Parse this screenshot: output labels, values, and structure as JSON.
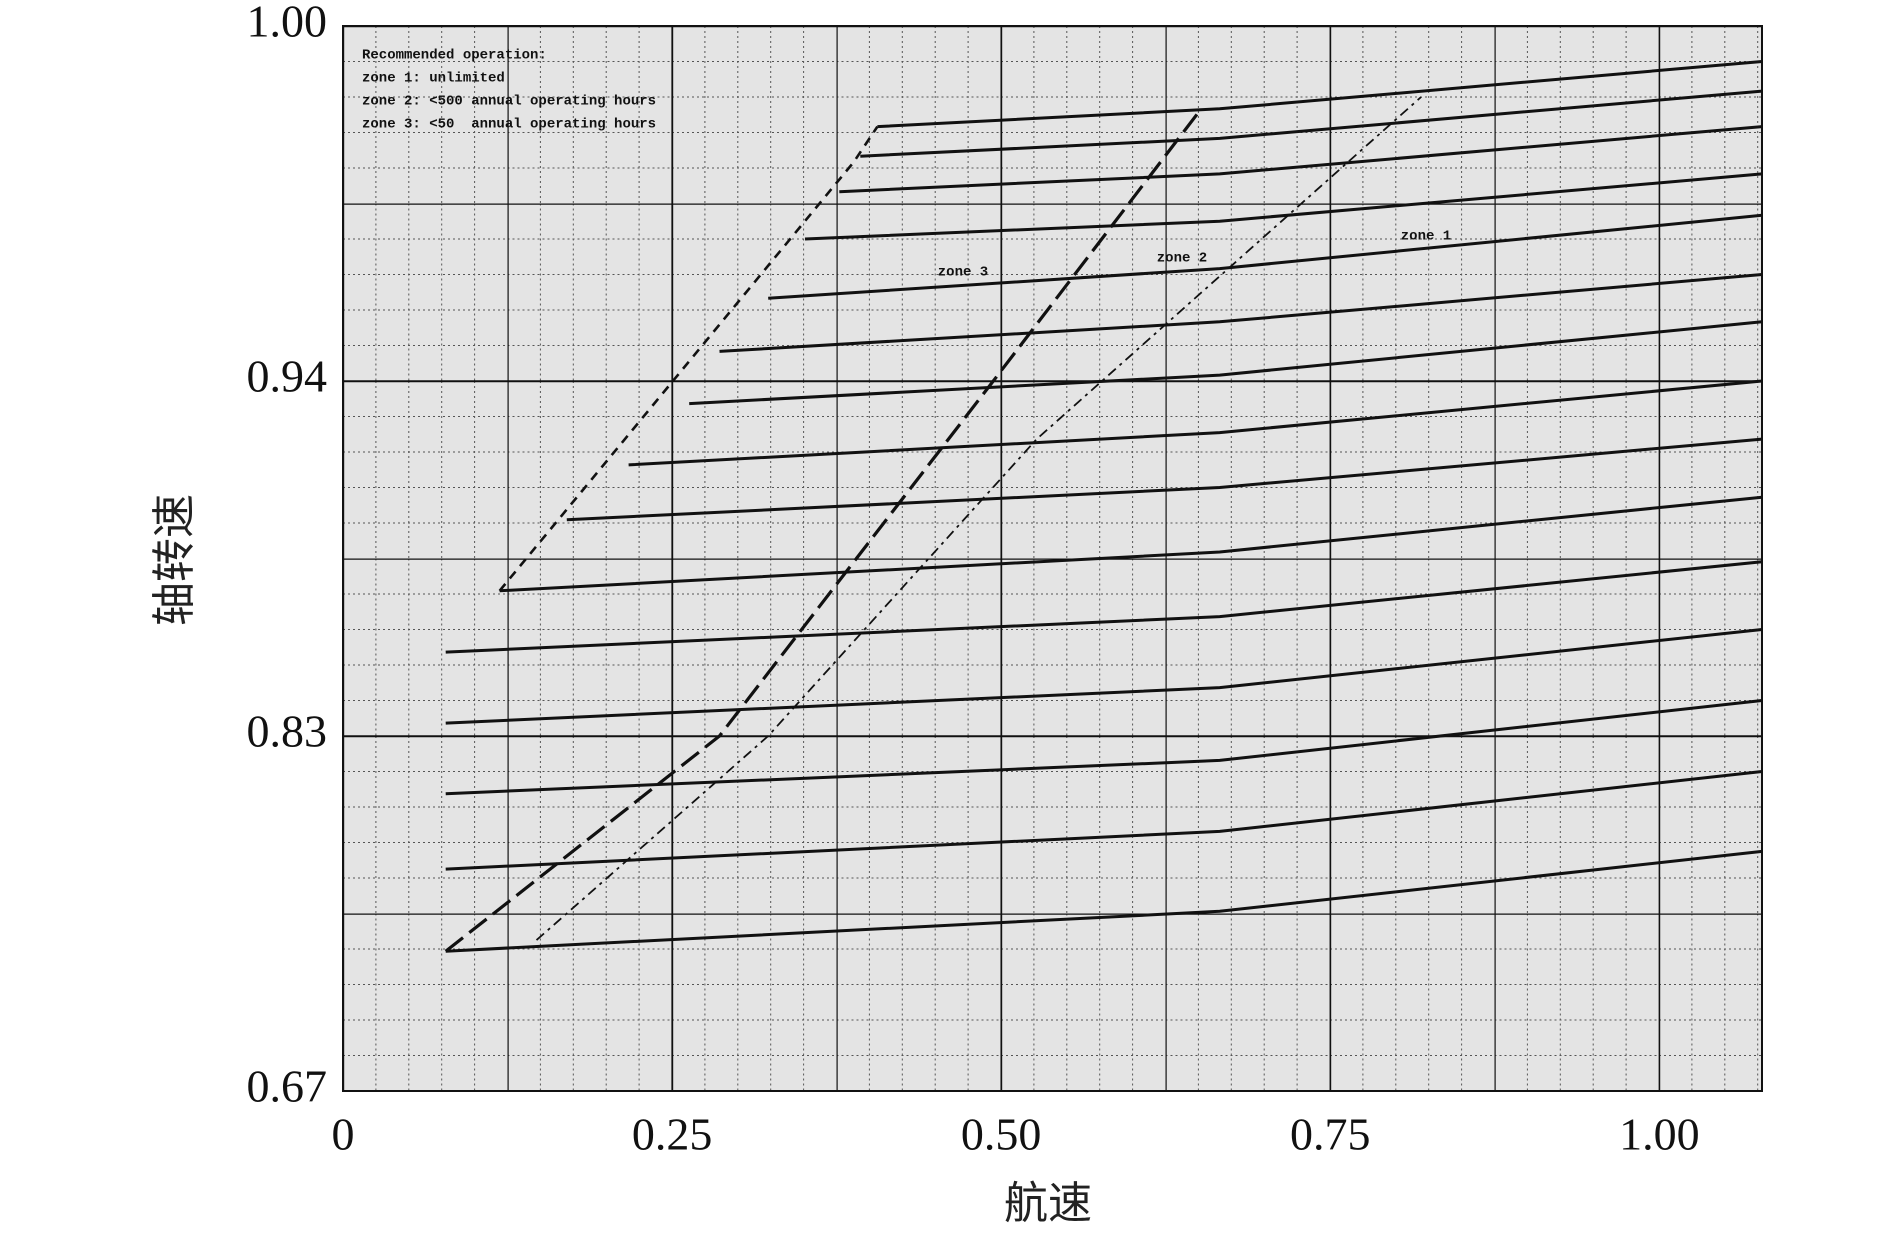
{
  "chart_data": {
    "type": "line",
    "xlabel": "航速",
    "ylabel": "轴转速",
    "xlim": [
      0,
      1.078
    ],
    "ylim": [
      0.67,
      1.0
    ],
    "yscale": "piecewise",
    "xticks": [
      0,
      0.25,
      {
        "value": 0.5,
        "label": "0.50"
      },
      0.75,
      {
        "value": 1,
        "label": "1.00"
      }
    ],
    "yticks": [
      0.67,
      0.83,
      0.94,
      {
        "value": 1,
        "label": "1.00"
      }
    ],
    "grid": true,
    "color": "#111111",
    "annotation_box": [
      "Recommended operation:",
      "zone 1: unlimited",
      "zone 2: <500 annual operating hours",
      "zone 3: <50  annual operating hours"
    ],
    "annotations": [
      "zone 3",
      "zone 2",
      "zone 1"
    ],
    "series": [
      {
        "style": "solid",
        "x": [
          0.406,
          0.666,
          1.078
        ],
        "values": [
          0.983,
          0.986,
          0.994
        ]
      },
      {
        "style": "solid",
        "x": [
          0.393,
          0.666,
          1.078
        ],
        "values": [
          0.978,
          0.981,
          0.989
        ]
      },
      {
        "style": "solid",
        "x": [
          0.377,
          0.666,
          1.078
        ],
        "values": [
          0.972,
          0.975,
          0.983
        ]
      },
      {
        "style": "solid",
        "x": [
          0.351,
          0.666,
          1.078
        ],
        "values": [
          0.964,
          0.967,
          0.975
        ]
      },
      {
        "style": "solid",
        "x": [
          0.323,
          0.666,
          1.078
        ],
        "values": [
          0.954,
          0.959,
          0.968
        ]
      },
      {
        "style": "solid",
        "x": [
          0.286,
          0.666,
          1.078
        ],
        "values": [
          0.945,
          0.95,
          0.958
        ]
      },
      {
        "style": "solid",
        "x": [
          0.263,
          0.666,
          1.078
        ],
        "values": [
          0.933,
          0.941,
          0.95
        ]
      },
      {
        "style": "solid",
        "x": [
          0.217,
          0.666,
          1.078
        ],
        "values": [
          0.914,
          0.924,
          0.94
        ]
      },
      {
        "style": "solid",
        "x": [
          0.17,
          0.666,
          1.078
        ],
        "values": [
          0.897,
          0.907,
          0.922
        ]
      },
      {
        "style": "solid",
        "x": [
          0.119,
          0.666,
          1.078
        ],
        "values": [
          0.875,
          0.887,
          0.904
        ]
      },
      {
        "style": "solid",
        "x": [
          0.078,
          0.666,
          1.078
        ],
        "values": [
          0.856,
          0.867,
          0.884
        ]
      },
      {
        "style": "solid",
        "x": [
          0.078,
          0.666,
          1.078
        ],
        "values": [
          0.834,
          0.845,
          0.863
        ]
      },
      {
        "style": "solid",
        "x": [
          0.078,
          0.666,
          1.078
        ],
        "values": [
          0.804,
          0.819,
          0.841
        ]
      },
      {
        "style": "solid",
        "x": [
          0.078,
          0.666,
          1.078
        ],
        "values": [
          0.77,
          0.787,
          0.814
        ]
      },
      {
        "style": "solid",
        "x": [
          0.078,
          0.666,
          1.078
        ],
        "values": [
          0.733,
          0.751,
          0.778
        ]
      },
      {
        "style": "dashed",
        "x": [
          0.119,
          0.388,
          0.406
        ],
        "values": [
          0.875,
          0.977,
          0.983
        ]
      },
      {
        "style": "longdash",
        "x": [
          0.078,
          0.286,
          0.494,
          0.652
        ],
        "values": [
          0.733,
          0.83,
          0.94,
          0.986
        ]
      },
      {
        "style": "dashdot",
        "x": [
          0.147,
          0.323,
          0.527,
          0.819
        ],
        "values": [
          0.738,
          0.83,
          0.922,
          0.988
        ]
      }
    ]
  }
}
